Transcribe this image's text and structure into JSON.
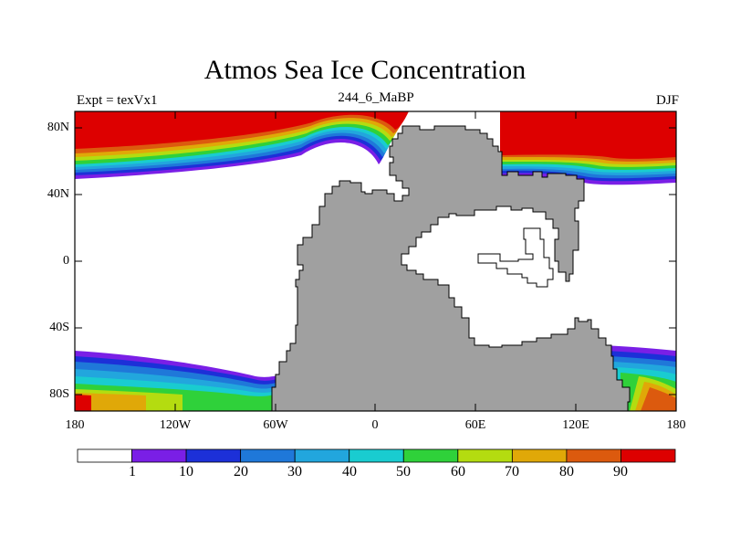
{
  "title": "Atmos Sea Ice Concentration",
  "experiment": "Expt = texVx1",
  "run_label": "244_6_MaBP",
  "season": "DJF",
  "axes": {
    "x_ticks": [
      "180",
      "120W",
      "60W",
      "0",
      "60E",
      "120E",
      "180"
    ],
    "y_ticks": [
      "80N",
      "40N",
      "0",
      "40S",
      "80S"
    ]
  },
  "colorbar": {
    "labels": [
      "1",
      "10",
      "20",
      "30",
      "40",
      "50",
      "60",
      "70",
      "80",
      "90"
    ],
    "colors": [
      "#ffffff",
      "#7a1fe6",
      "#1c30d8",
      "#1f78d9",
      "#22a6dd",
      "#19ccd0",
      "#2fd13a",
      "#b4dc10",
      "#e0a808",
      "#dc5a0e",
      "#dd0000"
    ]
  },
  "colors": {
    "land": "#a0a0a0",
    "ocean_no_ice": "#ffffff",
    "frame": "#000000"
  }
}
